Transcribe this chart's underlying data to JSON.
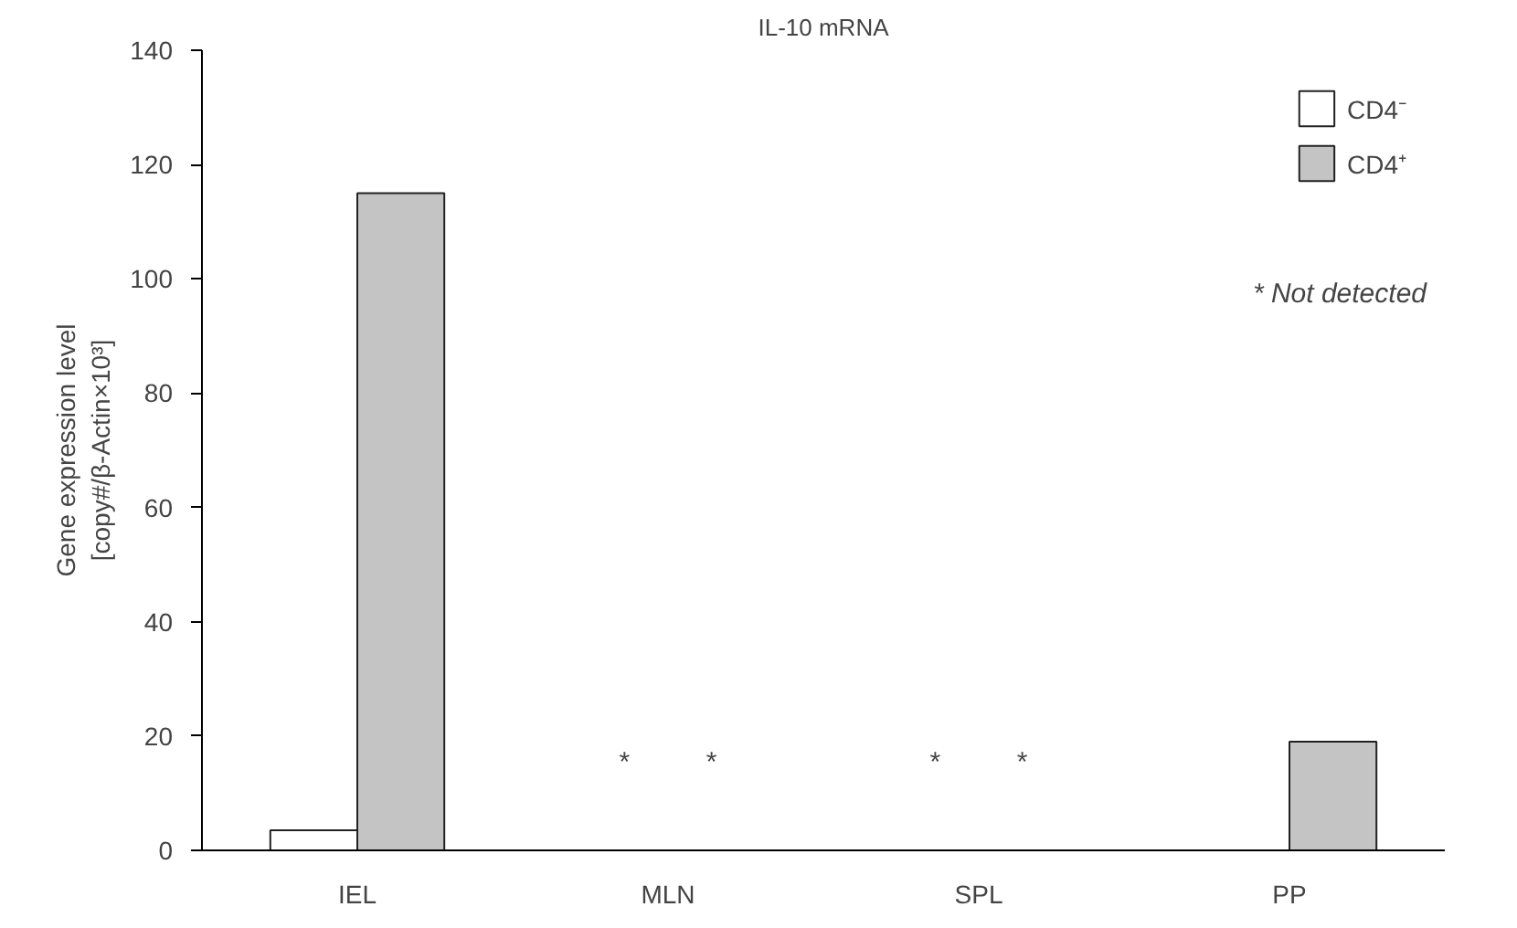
{
  "chart_data": {
    "type": "bar",
    "title": "IL-10 mRNA",
    "ylabel": "Gene expression level\n[copy#/β-Actin×10³]",
    "categories": [
      "IEL",
      "MLN",
      "SPL",
      "PP"
    ],
    "series": [
      {
        "name": "CD4⁻",
        "color": "#ffffff",
        "values": [
          3.5,
          null,
          null,
          null
        ]
      },
      {
        "name": "CD4⁺",
        "color": "#c4c4c4",
        "values": [
          115,
          null,
          null,
          19
        ]
      }
    ],
    "ylim": [
      0,
      140
    ],
    "yticks": [
      0,
      20,
      40,
      60,
      80,
      100,
      120,
      140
    ],
    "grid": false,
    "legend": "top right",
    "annotations": [
      "*",
      "*",
      "*",
      "*",
      "* Not detected"
    ]
  }
}
